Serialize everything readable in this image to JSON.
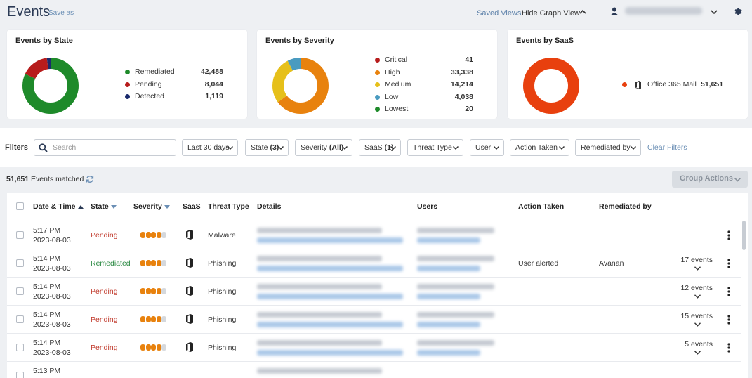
{
  "header": {
    "title": "Events",
    "save_as": "Save as",
    "saved_views": "Saved Views",
    "hide_graph_view": "Hide Graph View"
  },
  "cards": {
    "state": {
      "title": "Events by State",
      "items": [
        {
          "label": "Remediated",
          "value": "42,488",
          "color": "#1e8a2a"
        },
        {
          "label": "Pending",
          "value": "8,044",
          "color": "#b71c1c"
        },
        {
          "label": "Detected",
          "value": "1,119",
          "color": "#1a2a6c"
        }
      ]
    },
    "severity": {
      "title": "Events by Severity",
      "items": [
        {
          "label": "Critical",
          "value": "41",
          "color": "#b71c1c"
        },
        {
          "label": "High",
          "value": "33,338",
          "color": "#e8820e"
        },
        {
          "label": "Medium",
          "value": "14,214",
          "color": "#e6c01a"
        },
        {
          "label": "Low",
          "value": "4,038",
          "color": "#4a9bc0"
        },
        {
          "label": "Lowest",
          "value": "20",
          "color": "#1e8a2a"
        }
      ]
    },
    "saas": {
      "title": "Events by SaaS",
      "items": [
        {
          "label": "Office 365 Mail",
          "value": "51,651",
          "color": "#e8400e"
        }
      ]
    }
  },
  "filters": {
    "label": "Filters",
    "search_placeholder": "Search",
    "buttons": [
      {
        "text": "Last 30 days",
        "count": ""
      },
      {
        "text": "State",
        "count": "(3)"
      },
      {
        "text": "Severity",
        "count": "(All)"
      },
      {
        "text": "SaaS",
        "count": "(1)"
      },
      {
        "text": "Threat Type",
        "count": ""
      },
      {
        "text": "User",
        "count": ""
      },
      {
        "text": "Action Taken",
        "count": ""
      },
      {
        "text": "Remediated by",
        "count": ""
      }
    ],
    "clear": "Clear Filters"
  },
  "results": {
    "count": "51,651",
    "suffix": "Events matched",
    "group_actions": "Group Actions"
  },
  "table": {
    "headers": {
      "date": "Date & Time",
      "state": "State",
      "severity": "Severity",
      "saas": "SaaS",
      "threat": "Threat Type",
      "details": "Details",
      "users": "Users",
      "action": "Action Taken",
      "remediated": "Remediated by"
    },
    "rows": [
      {
        "time": "5:17 PM",
        "date": "2023-08-03",
        "state": "Pending",
        "threat": "Malware",
        "action": "",
        "remediated": "",
        "events": ""
      },
      {
        "time": "5:14 PM",
        "date": "2023-08-03",
        "state": "Remediated",
        "threat": "Phishing",
        "action": "User alerted",
        "remediated": "Avanan",
        "events": "17 events"
      },
      {
        "time": "5:14 PM",
        "date": "2023-08-03",
        "state": "Pending",
        "threat": "Phishing",
        "action": "",
        "remediated": "",
        "events": "12 events"
      },
      {
        "time": "5:14 PM",
        "date": "2023-08-03",
        "state": "Pending",
        "threat": "Phishing",
        "action": "",
        "remediated": "",
        "events": "15 events"
      },
      {
        "time": "5:14 PM",
        "date": "2023-08-03",
        "state": "Pending",
        "threat": "Phishing",
        "action": "",
        "remediated": "",
        "events": "5 events"
      },
      {
        "time": "5:13 PM",
        "date": "",
        "state": "",
        "threat": "",
        "action": "",
        "remediated": "",
        "events": ""
      }
    ]
  }
}
